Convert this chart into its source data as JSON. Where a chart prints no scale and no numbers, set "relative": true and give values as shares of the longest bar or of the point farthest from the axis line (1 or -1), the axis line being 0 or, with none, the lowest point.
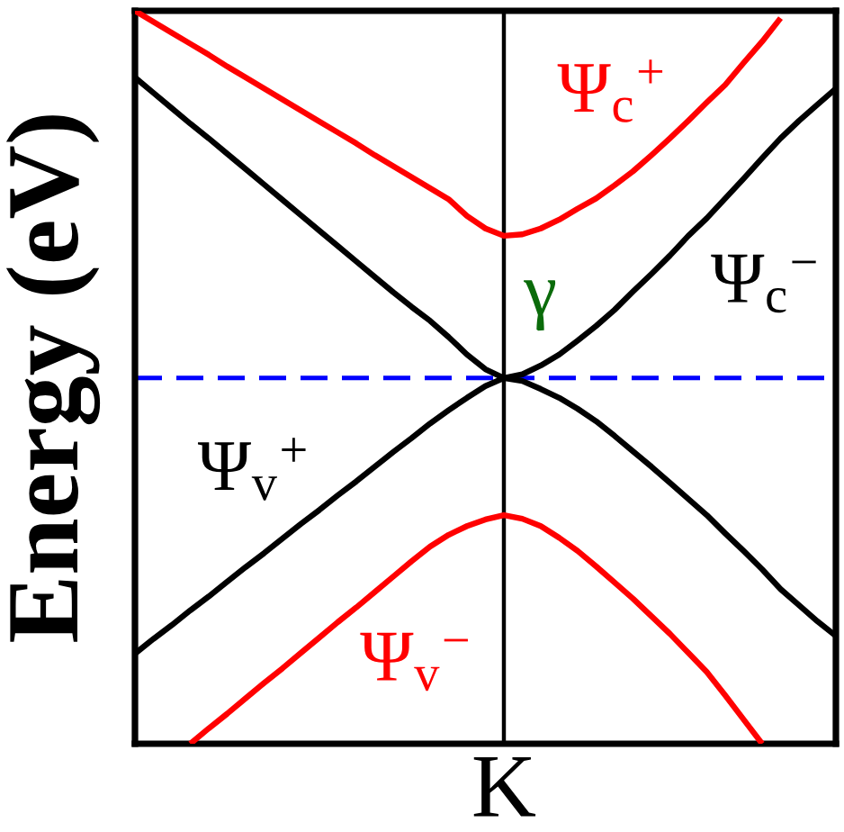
{
  "chart_data": {
    "type": "line",
    "ylabel": "Energy (eV)",
    "relative": true,
    "categories": [
      null,
      null,
      null,
      null,
      null,
      null,
      null,
      null,
      null,
      null,
      null,
      null,
      null,
      null,
      null,
      null,
      null,
      null,
      null,
      null,
      null,
      null,
      null,
      null,
      null,
      null,
      null,
      null,
      null,
      null,
      null,
      null,
      null,
      null,
      null,
      null,
      null,
      null,
      null
    ],
    "series": [
      {
        "name": "Ψ$_{c}$$^{−}$",
        "color": "#000000",
        "values": [
          0.909,
          0.888,
          0.867,
          0.846,
          0.826,
          0.805,
          0.784,
          0.763,
          0.742,
          0.721,
          0.7,
          0.679,
          0.658,
          0.637,
          0.616,
          0.596,
          0.577,
          0.555,
          0.531,
          0.511,
          0.499,
          0.504,
          0.516,
          0.531,
          0.55,
          0.57,
          0.592,
          0.617,
          0.641,
          0.666,
          0.693,
          0.717,
          0.744,
          0.771,
          0.799,
          0.826,
          0.85,
          0.872,
          0.894
        ]
      },
      {
        "name": "Ψ$_{v}$$^{+}$",
        "color": "#000000",
        "values": [
          0.123,
          0.143,
          0.162,
          0.182,
          0.201,
          0.221,
          0.241,
          0.26,
          0.28,
          0.3,
          0.319,
          0.339,
          0.358,
          0.378,
          0.398,
          0.417,
          0.437,
          0.455,
          0.472,
          0.488,
          0.499,
          0.495,
          0.484,
          0.472,
          0.457,
          0.44,
          0.42,
          0.399,
          0.378,
          0.356,
          0.334,
          0.312,
          0.287,
          0.263,
          0.238,
          0.211,
          0.189,
          0.167,
          0.147
        ]
      },
      {
        "name": "Ψ$_{c}$$^{+}$",
        "color": "#ff0000",
        "values": [
          1.0,
          0.985,
          0.97,
          0.955,
          0.94,
          0.924,
          0.909,
          0.894,
          0.879,
          0.864,
          0.849,
          0.834,
          0.819,
          0.803,
          0.788,
          0.773,
          0.758,
          0.743,
          0.72,
          0.703,
          0.693,
          0.695,
          0.703,
          0.715,
          0.73,
          0.744,
          0.762,
          0.781,
          0.803,
          0.826,
          0.85,
          0.875,
          0.899,
          0.929,
          0.958,
          0.99,
          null,
          null,
          null
        ]
      },
      {
        "name": "Ψ$_{v}$$^{−}$",
        "color": "#ff0000",
        "values": [
          null,
          null,
          null,
          0.0,
          0.021,
          0.041,
          0.062,
          0.083,
          0.103,
          0.124,
          0.145,
          0.166,
          0.186,
          0.207,
          0.228,
          0.249,
          0.269,
          0.285,
          0.297,
          0.306,
          0.312,
          0.307,
          0.297,
          0.281,
          0.263,
          0.242,
          0.22,
          0.198,
          0.174,
          0.15,
          0.124,
          0.098,
          0.066,
          0.033,
          0.0,
          null,
          null,
          null,
          null
        ]
      }
    ],
    "ref_lines": [
      {
        "axis": "y",
        "value": 0.499,
        "color": "#0000ff",
        "line_style": "dashed"
      }
    ],
    "annotations": [
      "γ",
      "K"
    ]
  }
}
